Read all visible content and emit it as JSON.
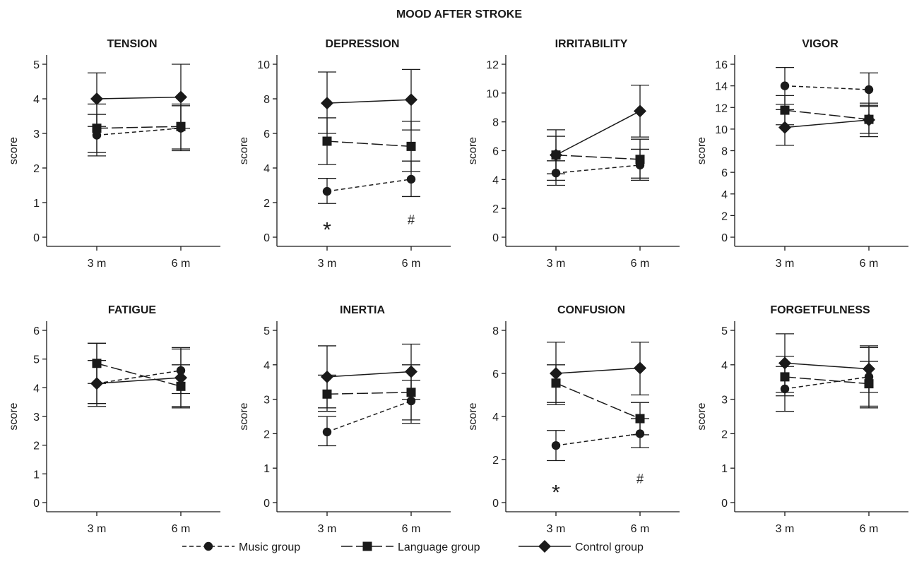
{
  "figure_title": "MOOD  AFTER STROKE",
  "chart_data": [
    {
      "type": "line",
      "title": "TENSION",
      "ylabel": "score",
      "x": [
        "3 m",
        "6 m"
      ],
      "ylim": [
        0,
        5
      ],
      "yticks": [
        0,
        1,
        2,
        3,
        4,
        5
      ],
      "series": [
        {
          "name": "Music group",
          "values": [
            2.95,
            3.15
          ],
          "err_low": [
            2.35,
            2.55
          ],
          "err_high": [
            3.55,
            3.8
          ]
        },
        {
          "name": "Language group",
          "values": [
            3.15,
            3.2
          ],
          "err_low": [
            2.45,
            2.5
          ],
          "err_high": [
            3.85,
            3.85
          ]
        },
        {
          "name": "Control group",
          "values": [
            4.0,
            4.05
          ],
          "err_low": [
            3.2,
            3.15
          ],
          "err_high": [
            4.75,
            5.0
          ]
        }
      ],
      "annotations": []
    },
    {
      "type": "line",
      "title": "DEPRESSION",
      "ylabel": "score",
      "x": [
        "3 m",
        "6 m"
      ],
      "ylim": [
        0,
        10
      ],
      "yticks": [
        0,
        2,
        4,
        6,
        8,
        10
      ],
      "series": [
        {
          "name": "Music group",
          "values": [
            2.65,
            3.35
          ],
          "err_low": [
            1.95,
            2.35
          ],
          "err_high": [
            3.4,
            4.4
          ]
        },
        {
          "name": "Language group",
          "values": [
            5.55,
            5.25
          ],
          "err_low": [
            4.2,
            3.8
          ],
          "err_high": [
            6.9,
            6.7
          ]
        },
        {
          "name": "Control group",
          "values": [
            7.75,
            7.95
          ],
          "err_low": [
            6.0,
            6.2
          ],
          "err_high": [
            9.55,
            9.7
          ]
        }
      ],
      "annotations": [
        {
          "text": "*",
          "x": "3 m",
          "y": 0.6,
          "size": "large"
        },
        {
          "text": "#",
          "x": "6 m",
          "y": 1.0,
          "size": "small"
        }
      ]
    },
    {
      "type": "line",
      "title": "IRRITABILITY",
      "ylabel": "score",
      "x": [
        "3 m",
        "6 m"
      ],
      "ylim": [
        0,
        12
      ],
      "yticks": [
        0,
        2,
        4,
        6,
        8,
        10,
        12
      ],
      "series": [
        {
          "name": "Music group",
          "values": [
            4.45,
            5.0
          ],
          "err_low": [
            3.6,
            3.95
          ],
          "err_high": [
            5.3,
            6.1
          ]
        },
        {
          "name": "Language group",
          "values": [
            5.7,
            5.4
          ],
          "err_low": [
            4.4,
            4.1
          ],
          "err_high": [
            7.0,
            6.8
          ]
        },
        {
          "name": "Control group",
          "values": [
            5.7,
            8.75
          ],
          "err_low": [
            3.95,
            6.95
          ],
          "err_high": [
            7.45,
            10.55
          ]
        }
      ],
      "annotations": []
    },
    {
      "type": "line",
      "title": "VIGOR",
      "ylabel": "score",
      "x": [
        "3 m",
        "6 m"
      ],
      "ylim": [
        0,
        16
      ],
      "yticks": [
        0,
        2,
        4,
        6,
        8,
        10,
        12,
        14,
        16
      ],
      "series": [
        {
          "name": "Music group",
          "values": [
            14.0,
            13.65
          ],
          "err_low": [
            12.3,
            12.1
          ],
          "err_high": [
            15.7,
            15.2
          ]
        },
        {
          "name": "Language group",
          "values": [
            11.75,
            10.9
          ],
          "err_low": [
            10.4,
            9.6
          ],
          "err_high": [
            13.1,
            12.2
          ]
        },
        {
          "name": "Control group",
          "values": [
            10.15,
            10.85
          ],
          "err_low": [
            8.5,
            9.3
          ],
          "err_high": [
            11.8,
            12.4
          ]
        }
      ],
      "annotations": []
    },
    {
      "type": "line",
      "title": "FATIGUE",
      "ylabel": "score",
      "x": [
        "3 m",
        "6 m"
      ],
      "ylim": [
        0,
        6
      ],
      "yticks": [
        0,
        1,
        2,
        3,
        4,
        5,
        6
      ],
      "series": [
        {
          "name": "Music group",
          "values": [
            4.15,
            4.6
          ],
          "err_low": [
            3.35,
            3.8
          ],
          "err_high": [
            4.95,
            5.4
          ]
        },
        {
          "name": "Language group",
          "values": [
            4.85,
            4.05
          ],
          "err_low": [
            4.15,
            3.3
          ],
          "err_high": [
            5.55,
            4.8
          ]
        },
        {
          "name": "Control group",
          "values": [
            4.15,
            4.35
          ],
          "err_low": [
            3.45,
            3.35
          ],
          "err_high": [
            5.55,
            5.35
          ]
        }
      ],
      "annotations": []
    },
    {
      "type": "line",
      "title": "INERTIA",
      "ylabel": "score",
      "x": [
        "3 m",
        "6 m"
      ],
      "ylim": [
        0,
        5
      ],
      "yticks": [
        0,
        1,
        2,
        3,
        4,
        5
      ],
      "series": [
        {
          "name": "Music group",
          "values": [
            2.05,
            2.95
          ],
          "err_low": [
            1.65,
            2.3
          ],
          "err_high": [
            2.5,
            3.55
          ]
        },
        {
          "name": "Language group",
          "values": [
            3.15,
            3.2
          ],
          "err_low": [
            2.65,
            2.4
          ],
          "err_high": [
            3.7,
            4.0
          ]
        },
        {
          "name": "Control group",
          "values": [
            3.65,
            3.8
          ],
          "err_low": [
            2.75,
            3.0
          ],
          "err_high": [
            4.55,
            4.6
          ]
        }
      ],
      "annotations": []
    },
    {
      "type": "line",
      "title": "CONFUSION",
      "ylabel": "score",
      "x": [
        "3 m",
        "6 m"
      ],
      "ylim": [
        0,
        8
      ],
      "yticks": [
        0,
        2,
        4,
        6,
        8
      ],
      "series": [
        {
          "name": "Music group",
          "values": [
            2.65,
            3.2
          ],
          "err_low": [
            1.95,
            2.55
          ],
          "err_high": [
            3.35,
            3.9
          ]
        },
        {
          "name": "Language group",
          "values": [
            5.55,
            3.9
          ],
          "err_low": [
            4.65,
            3.15
          ],
          "err_high": [
            6.4,
            4.65
          ]
        },
        {
          "name": "Control group",
          "values": [
            6.0,
            6.25
          ],
          "err_low": [
            4.55,
            5.0
          ],
          "err_high": [
            7.45,
            7.45
          ]
        }
      ],
      "annotations": [
        {
          "text": "*",
          "x": "3 m",
          "y": 0.6,
          "size": "large"
        },
        {
          "text": "#",
          "x": "6 m",
          "y": 1.1,
          "size": "small"
        }
      ]
    },
    {
      "type": "line",
      "title": "FORGETFULNESS",
      "ylabel": "score",
      "x": [
        "3 m",
        "6 m"
      ],
      "ylim": [
        0,
        5
      ],
      "yticks": [
        0,
        1,
        2,
        3,
        4,
        5
      ],
      "series": [
        {
          "name": "Music group",
          "values": [
            3.3,
            3.65
          ],
          "err_low": [
            2.65,
            2.75
          ],
          "err_high": [
            3.95,
            4.5
          ]
        },
        {
          "name": "Language group",
          "values": [
            3.65,
            3.45
          ],
          "err_low": [
            3.1,
            2.8
          ],
          "err_high": [
            4.25,
            4.1
          ]
        },
        {
          "name": "Control group",
          "values": [
            4.05,
            3.88
          ],
          "err_low": [
            3.2,
            3.2
          ],
          "err_high": [
            4.9,
            4.55
          ]
        }
      ],
      "annotations": []
    }
  ],
  "legend": [
    {
      "label": "Music group",
      "marker": "circle",
      "dash": "6 4"
    },
    {
      "label": "Language group",
      "marker": "square",
      "dash": "16 5"
    },
    {
      "label": "Control group",
      "marker": "diamond",
      "dash": ""
    }
  ]
}
